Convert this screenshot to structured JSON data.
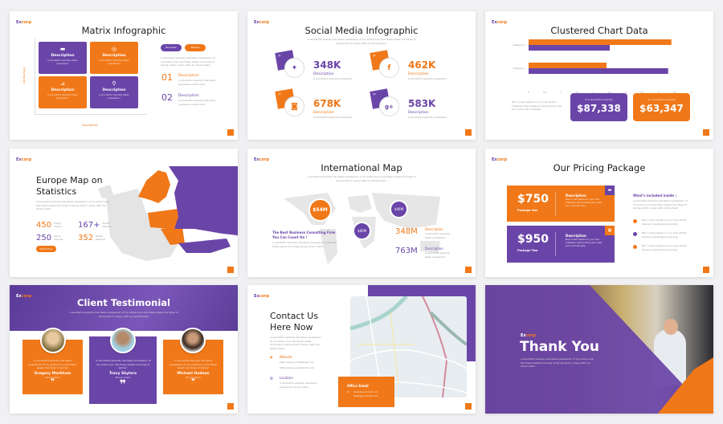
{
  "brand": {
    "logo_a": "Ex",
    "logo_b": "corp"
  },
  "colors": {
    "purple": "#6a45a8",
    "orange": "#f07818"
  },
  "lorem": "A wonderful serenity has taken possession of my entire soul, like these sweet mornings of spring which I enjoy with my whole heart.",
  "lorem_short": "A wonderful serenity taken possession",
  "matrix": {
    "title": "Matrix Infographic",
    "boxes": [
      {
        "label": "Description",
        "icon": "briefcase-icon",
        "color": "purple"
      },
      {
        "label": "Description",
        "icon": "target-icon",
        "color": "orange"
      },
      {
        "label": "Description",
        "icon": "chart-icon",
        "color": "orange"
      },
      {
        "label": "Description",
        "icon": "map-pin-icon",
        "color": "purple"
      }
    ],
    "axis_x": "Description",
    "axis_y": "Description",
    "pill_business": "Business",
    "pill_market": "Market",
    "num1": "01",
    "num2": "02",
    "desc": "Description",
    "desc_text": "A wonderful serenity has taken possession entire soul"
  },
  "social": {
    "title": "Social Media Infographic",
    "items": [
      {
        "idx": "01",
        "icon": "twitter-icon",
        "glyph": "🐦",
        "value": "348K",
        "label": "Description",
        "color": "purple"
      },
      {
        "idx": "02",
        "icon": "facebook-icon",
        "glyph": "f",
        "value": "462K",
        "label": "Description",
        "color": "orange"
      },
      {
        "idx": "03",
        "icon": "instagram-icon",
        "glyph": "◙",
        "value": "678K",
        "label": "Description",
        "color": "orange"
      },
      {
        "idx": "04",
        "icon": "google-plus-icon",
        "glyph": "g+",
        "value": "583K",
        "label": "Description",
        "color": "purple"
      }
    ],
    "item_text": "A wonderful serenity possession"
  },
  "clustered": {
    "title": "Clustered Chart Data",
    "left_text": "But I must explain to you how all this mistaken idea pleasure praising pain was born and I will complete",
    "box1_label": "A wonderful serenity",
    "box1_value": "$87,338",
    "box2_label": "A wonderful serenity",
    "box2_value": "$63,347"
  },
  "chart_data": {
    "type": "bar",
    "orientation": "horizontal",
    "categories": [
      "Category 1",
      "Category 2"
    ],
    "series": [
      {
        "color": "#f07818",
        "values": [
          2.4,
          4.4
        ]
      },
      {
        "color": "#6a45a8",
        "values": [
          4.3,
          2.5
        ]
      }
    ],
    "xlim": [
      0,
      5
    ],
    "xticks": [
      "0",
      "0.5",
      "1",
      "1.5",
      "2",
      "2.5",
      "3",
      "3.5",
      "4",
      "4.5",
      "5"
    ],
    "grid": false
  },
  "europe": {
    "title1": "Europe Map on",
    "title2": "Statistics",
    "stats": [
      {
        "value": "450",
        "label": "Happy Clients",
        "color": "orange"
      },
      {
        "value": "167+",
        "label": "Expert Member",
        "color": "purple"
      },
      {
        "value": "250",
        "label": "Active Projects",
        "color": "purple"
      },
      {
        "value": "352",
        "label": "Global Rewards",
        "color": "orange"
      }
    ],
    "button": "Read More"
  },
  "intl": {
    "title": "International Map",
    "c1": "$54M",
    "c2": "$60M",
    "c3": "$46M",
    "heading": "The Best Business Consulting Firm You Can Count On !",
    "text": "A wonderful serenity has taken possession entire like these sweet mornings spring which charm",
    "v1": "348M",
    "v2": "763M",
    "desc": "Description",
    "desc_text": "A wonderful serenity taken possession"
  },
  "pricing": {
    "title": "Our Pricing Package",
    "p1_price": "$750",
    "p1_name": "Package One",
    "p2_price": "$950",
    "p2_name": "Package Two",
    "desc": "Description",
    "desc_text": "But I must explain to you how mistaken idea praising pain was born and will give",
    "included": "What's included inside :",
    "included_text": "A wonderful serenity has taken possession of my entire soul, like these sweet mornings of spring which I enjoy with whole heart",
    "bullet": "But I must explain to you how all this denouncing pleasure praising"
  },
  "testimonial": {
    "title": "Client Testimonial",
    "quote": "\"A wonderful serenity has taken possession of my entire soul, like these sweet mornings of spring\"",
    "people": [
      {
        "name": "Gregory Markham",
        "role": "Excorp Client"
      },
      {
        "name": "Tracy Skylera",
        "role": "Excorp Client"
      },
      {
        "name": "Michael Hudson",
        "role": "Excorp Client"
      }
    ],
    "quote_mark": "❞"
  },
  "contact": {
    "title1": "Contact Us",
    "title2": "Here Now",
    "website": "Website",
    "url1": "http://www.yourwebsite.com",
    "url2": "http://www.yourwebsite.com",
    "location": "Location",
    "location_text": "A wonderful serenity has taken possession of my entire",
    "email_title": "Office Email",
    "email1": "hello@yourmail.com",
    "email2": "hello@yourmail.com"
  },
  "thanks": {
    "title": "Thank You"
  }
}
